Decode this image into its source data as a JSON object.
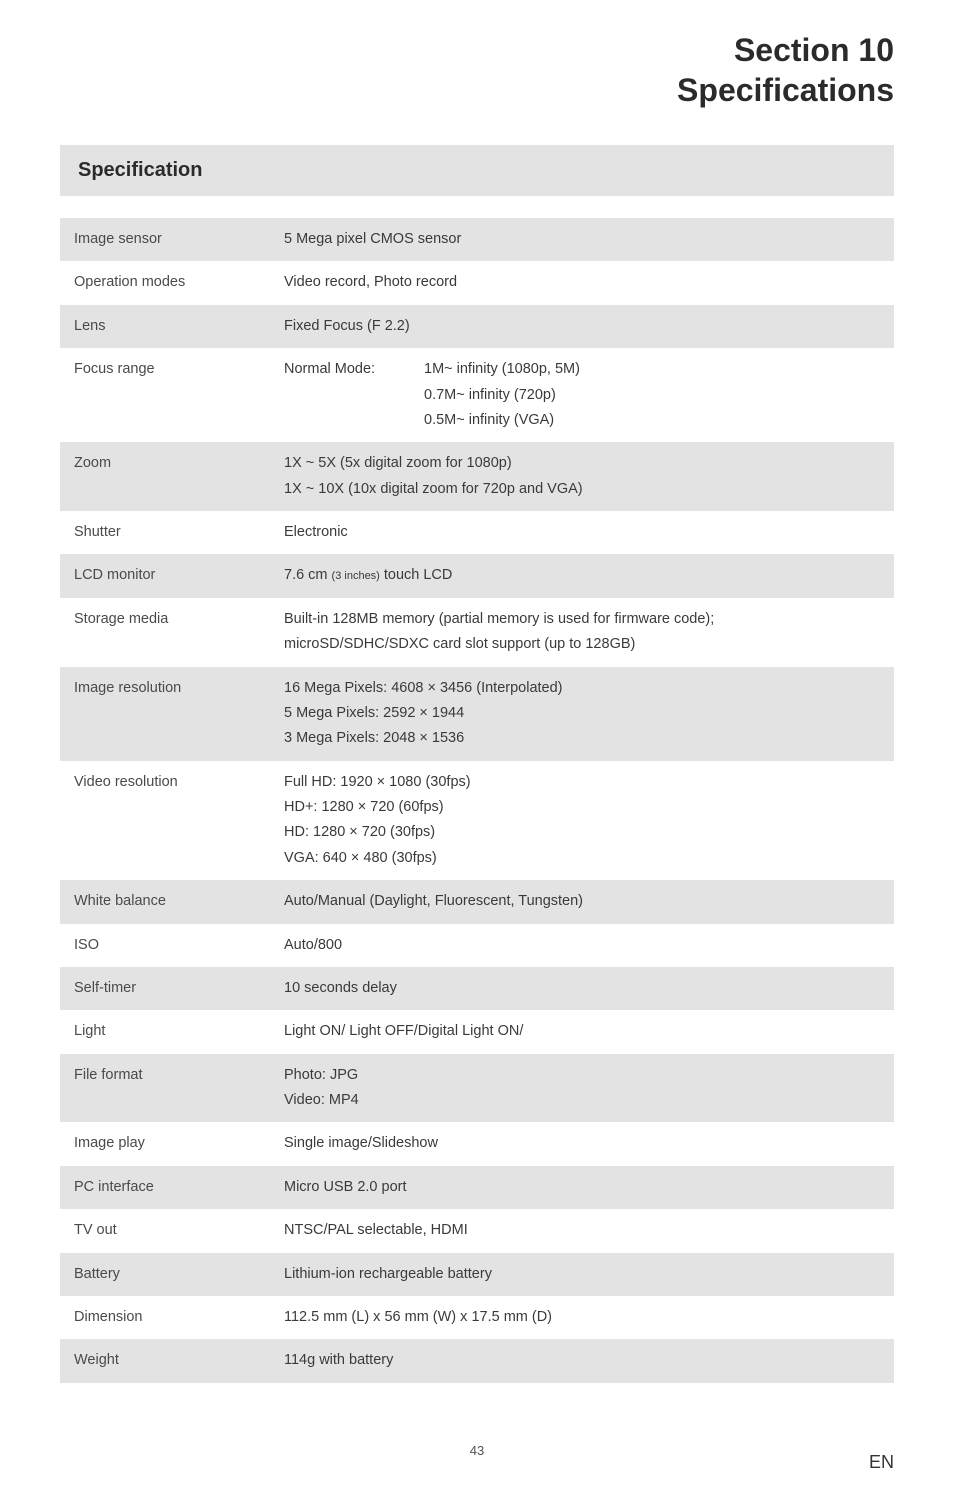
{
  "header": {
    "line1": "Section 10",
    "line2": "Specifications"
  },
  "spec_title": "Specification",
  "rows": [
    {
      "label": "Image sensor",
      "value": "5 Mega pixel CMOS sensor",
      "shade": true
    },
    {
      "label": "Operation modes",
      "value": "Video record, Photo record",
      "shade": false
    },
    {
      "label": "Lens",
      "value": "Fixed Focus (F 2.2)",
      "shade": true
    },
    {
      "label": "Focus range",
      "shade": false,
      "normal_mode_label": "Normal Mode:",
      "normal_mode_lines": [
        "1M~ infinity (1080p, 5M)",
        "0.7M~ infinity (720p)",
        "0.5M~ infinity (VGA)"
      ]
    },
    {
      "label": "Zoom",
      "shade": true,
      "lines": [
        "1X ~ 5X (5x digital zoom for 1080p)",
        "1X ~ 10X (10x digital zoom for 720p and VGA)"
      ]
    },
    {
      "label": "Shutter",
      "value": "Electronic",
      "shade": false
    },
    {
      "label": "LCD monitor",
      "shade": true,
      "rich": {
        "pre": "7.6 cm ",
        "small": "(3 inches)",
        "post": " touch LCD"
      }
    },
    {
      "label": "Storage media",
      "shade": false,
      "lines": [
        "Built-in 128MB memory (partial memory is used for firmware code);",
        "microSD/SDHC/SDXC card slot support (up to 128GB)"
      ]
    },
    {
      "label": "Image resolution",
      "shade": true,
      "lines": [
        "16 Mega Pixels: 4608 × 3456 (Interpolated)",
        "5 Mega Pixels: 2592 × 1944",
        "3 Mega Pixels: 2048 × 1536"
      ]
    },
    {
      "label": "Video resolution",
      "shade": false,
      "lines": [
        "Full HD: 1920 × 1080 (30fps)",
        "HD+: 1280 × 720 (60fps)",
        "HD: 1280 × 720 (30fps)",
        "VGA: 640 × 480 (30fps)"
      ]
    },
    {
      "label": "White balance",
      "value": "Auto/Manual (Daylight, Fluorescent, Tungsten)",
      "shade": true
    },
    {
      "label": "ISO",
      "value": "Auto/800",
      "shade": false
    },
    {
      "label": "Self-timer",
      "value": "10 seconds delay",
      "shade": true
    },
    {
      "label": "Light",
      "value": "Light ON/ Light OFF/Digital Light ON/",
      "shade": false
    },
    {
      "label": "File format",
      "shade": true,
      "lines": [
        "Photo: JPG",
        "Video: MP4"
      ]
    },
    {
      "label": "Image play",
      "value": "Single image/Slideshow",
      "shade": false
    },
    {
      "label": "PC interface",
      "value": "Micro USB 2.0 port",
      "shade": true
    },
    {
      "label": "TV out",
      "value": "NTSC/PAL selectable, HDMI",
      "shade": false
    },
    {
      "label": "Battery",
      "value": "Lithium-ion rechargeable battery",
      "shade": true
    },
    {
      "label": "Dimension",
      "value": "112.5 mm (L) x 56 mm (W) x 17.5 mm (D)",
      "shade": false
    },
    {
      "label": "Weight",
      "value": "114g with battery",
      "shade": true
    }
  ],
  "footer": {
    "page": "43",
    "lang": "EN"
  },
  "colors": {
    "shade_bg": "#e3e3e3",
    "text": "#3a3a3a",
    "header_text": "#2b2b2b"
  }
}
